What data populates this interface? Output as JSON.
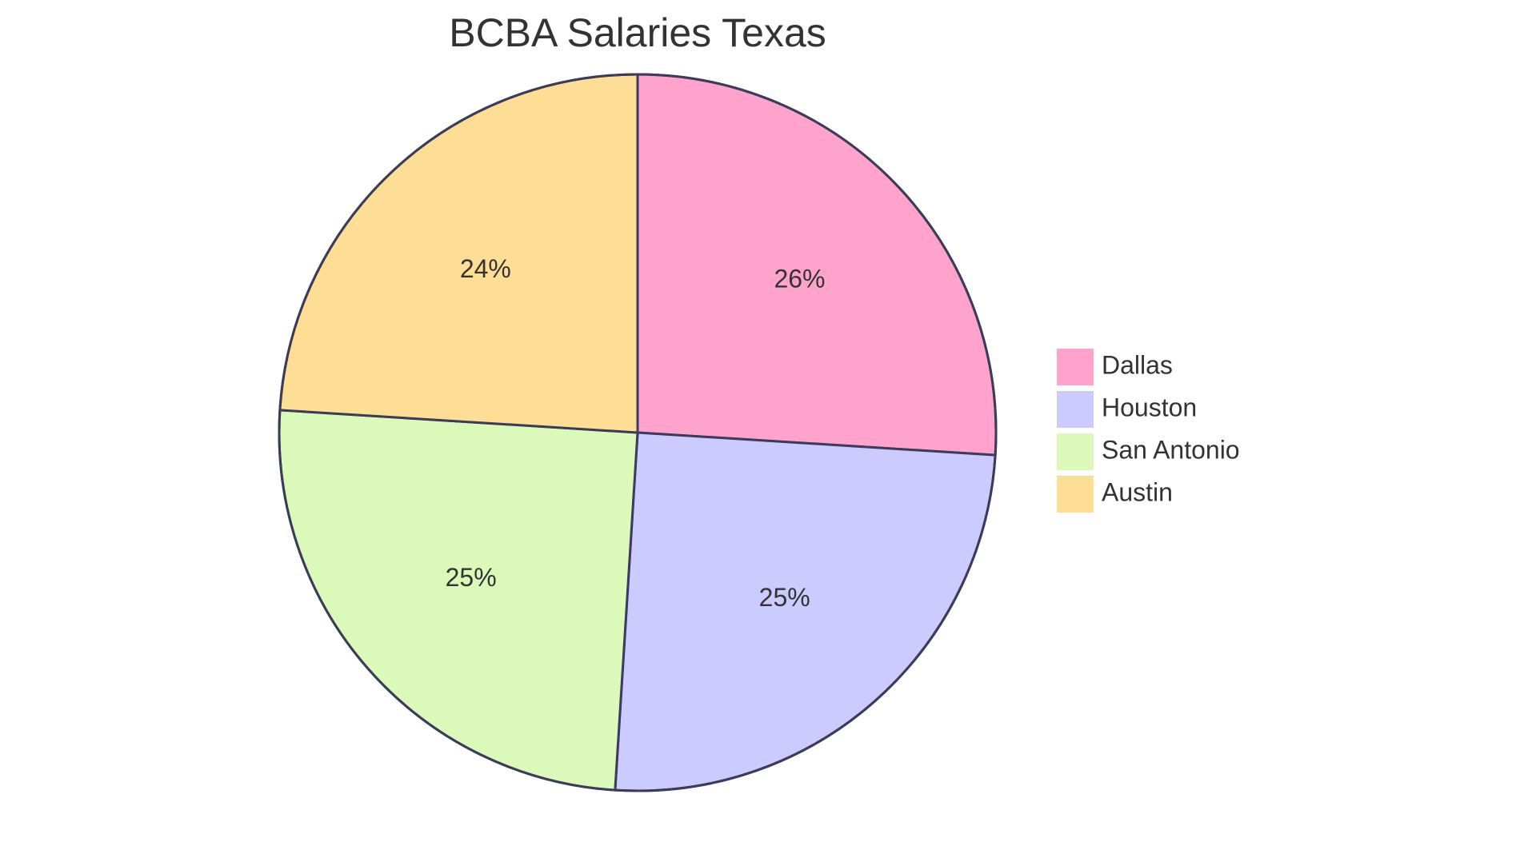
{
  "chart_data": {
    "type": "pie",
    "title": "BCBA Salaries Texas",
    "categories": [
      "Dallas",
      "Houston",
      "San Antonio",
      "Austin"
    ],
    "values": [
      26,
      25,
      25,
      24
    ],
    "labels": [
      "26%",
      "25%",
      "25%",
      "24%"
    ],
    "colors": [
      "#ffa3cd",
      "#cbcbff",
      "#dbf9b9",
      "#fedd95"
    ],
    "legend_position": "right"
  }
}
